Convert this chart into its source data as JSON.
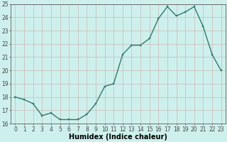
{
  "xlabel": "Humidex (Indice chaleur)",
  "ylabel": "",
  "x_values": [
    0,
    1,
    2,
    3,
    4,
    5,
    6,
    7,
    8,
    9,
    10,
    11,
    12,
    13,
    14,
    15,
    16,
    17,
    18,
    19,
    20,
    21,
    22,
    23
  ],
  "y_values": [
    18.0,
    17.8,
    17.5,
    16.6,
    16.8,
    16.3,
    16.3,
    16.3,
    16.7,
    17.5,
    18.8,
    19.0,
    21.2,
    21.9,
    21.9,
    22.4,
    23.9,
    24.8,
    24.1,
    24.4,
    24.8,
    23.3,
    21.2,
    20.0
  ],
  "line_color": "#2d7a6e",
  "marker_color": "#2d7a6e",
  "bg_color": "#cef0ec",
  "grid_color": "#c8b8b8",
  "axis_color": "#444444",
  "ylim": [
    16,
    25
  ],
  "yticks": [
    16,
    17,
    18,
    19,
    20,
    21,
    22,
    23,
    24,
    25
  ],
  "xticks": [
    0,
    1,
    2,
    3,
    4,
    5,
    6,
    7,
    8,
    9,
    10,
    11,
    12,
    13,
    14,
    15,
    16,
    17,
    18,
    19,
    20,
    21,
    22,
    23
  ],
  "tick_fontsize": 5.5,
  "label_fontsize": 7.0,
  "linewidth": 1.0,
  "markersize": 2.0
}
